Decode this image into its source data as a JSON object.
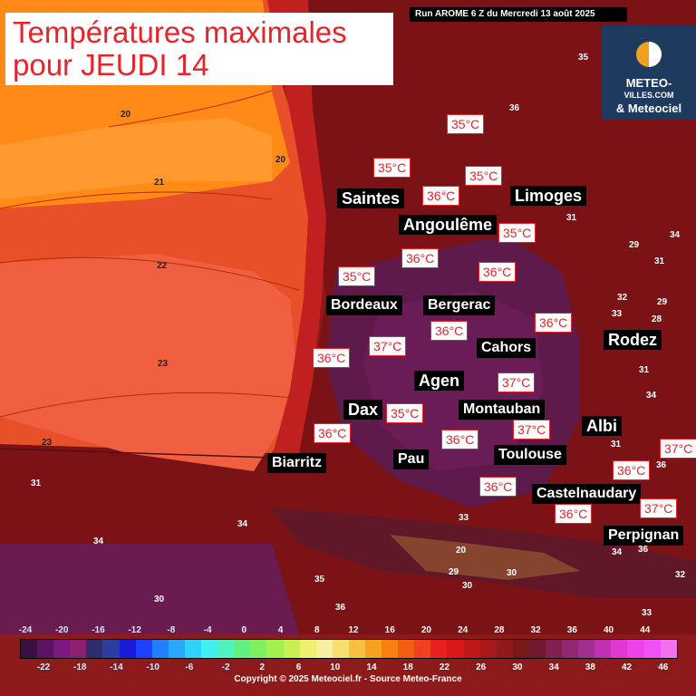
{
  "title": {
    "line1": "Températures maximales",
    "line2": "pour JEUDI 14"
  },
  "run_info": "Run AROME 6 Z du Mercredi 13 août 2025",
  "logo": {
    "line1": "METEO-",
    "line2": "VILLES.COM",
    "line3": "& Meteociel"
  },
  "copyright": "Copyright © 2025 Meteociel.fr - Source Meteo-France",
  "cities": [
    "Saintes",
    "Limoges",
    "Angoulême",
    "Bordeaux",
    "Bergerac",
    "Cahors",
    "Rodez",
    "Agen",
    "Dax",
    "Montauban",
    "Albi",
    "Biarritz",
    "Pau",
    "Toulouse",
    "Castelnaudary",
    "Perpignan"
  ],
  "temps": [
    "35°C",
    "35°C",
    "35°C",
    "36°C",
    "35°C",
    "36°C",
    "36°C",
    "35°C",
    "36°C",
    "36°C",
    "37°C",
    "36°C",
    "36°C",
    "37°C",
    "35°C",
    "36°C",
    "36°C",
    "37°C",
    "37°C",
    "36°C",
    "36°C",
    "37°C"
  ],
  "isolines": [
    "20",
    "20",
    "21",
    "22",
    "23",
    "23",
    "31",
    "35",
    "36",
    "31",
    "34",
    "29",
    "31",
    "32",
    "29",
    "33",
    "28",
    "31",
    "34",
    "31",
    "36",
    "33",
    "34",
    "32",
    "34",
    "35",
    "30",
    "36",
    "33",
    "30",
    "29",
    "20",
    "30",
    "34",
    "36"
  ],
  "legend": {
    "top_labels": [
      "-24",
      "-20",
      "-16",
      "-12",
      "-8",
      "-4",
      "0",
      "4",
      "8",
      "12",
      "16",
      "20",
      "24",
      "28",
      "32",
      "36",
      "40",
      "44"
    ],
    "bottom_labels": [
      "-22",
      "-18",
      "-14",
      "-10",
      "-6",
      "-2",
      "2",
      "6",
      "10",
      "14",
      "18",
      "22",
      "26",
      "30",
      "34",
      "38",
      "42",
      "46"
    ],
    "colors": [
      "#3a1040",
      "#5a1460",
      "#7a1880",
      "#8c1f6e",
      "#2b2d6e",
      "#2a3ea0",
      "#1a1ad8",
      "#1e40ff",
      "#2080ff",
      "#28a8ff",
      "#30d0ff",
      "#40f0f0",
      "#50f0c0",
      "#60f080",
      "#80f060",
      "#a0f050",
      "#c8f050",
      "#f0f070",
      "#f8f0a0",
      "#f8e070",
      "#f8c040",
      "#f8a020",
      "#f88010",
      "#f06010",
      "#f04020",
      "#e82020",
      "#d81818",
      "#c01818",
      "#a81818",
      "#901818",
      "#781818",
      "#701830",
      "#802050",
      "#902870",
      "#a03090",
      "#c030b0",
      "#e038d0",
      "#f040e8",
      "#f050f8",
      "#f070f0"
    ]
  }
}
